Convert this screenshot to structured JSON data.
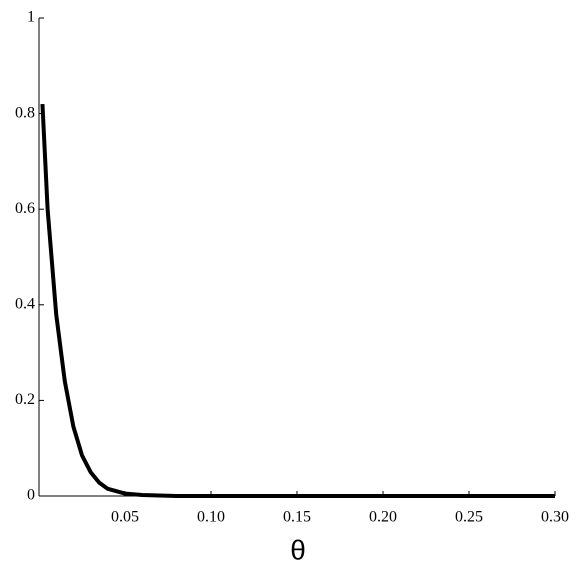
{
  "chart_data": {
    "type": "line",
    "x_label": "θ",
    "x": [
      0.002,
      0.005,
      0.01,
      0.015,
      0.02,
      0.025,
      0.03,
      0.035,
      0.04,
      0.05,
      0.06,
      0.08,
      0.1,
      0.15,
      0.2,
      0.25,
      0.3
    ],
    "series": [
      {
        "color": "#000000",
        "values": [
          0.82,
          0.6,
          0.38,
          0.24,
          0.145,
          0.085,
          0.05,
          0.028,
          0.015,
          0.005,
          0.002,
          0,
          0,
          0,
          0,
          0,
          0
        ]
      }
    ],
    "xlim": [
      0,
      0.3
    ],
    "ylim": [
      0,
      1
    ],
    "xticks": [
      0.05,
      {
        "value": 0.1,
        "label": "0.10"
      },
      0.15,
      {
        "value": 0.2,
        "label": "0.20"
      },
      0.25,
      {
        "value": 0.3,
        "label": "0.30"
      }
    ],
    "yticks": [
      0,
      0.2,
      0.4,
      0.6,
      0.8,
      1
    ]
  }
}
